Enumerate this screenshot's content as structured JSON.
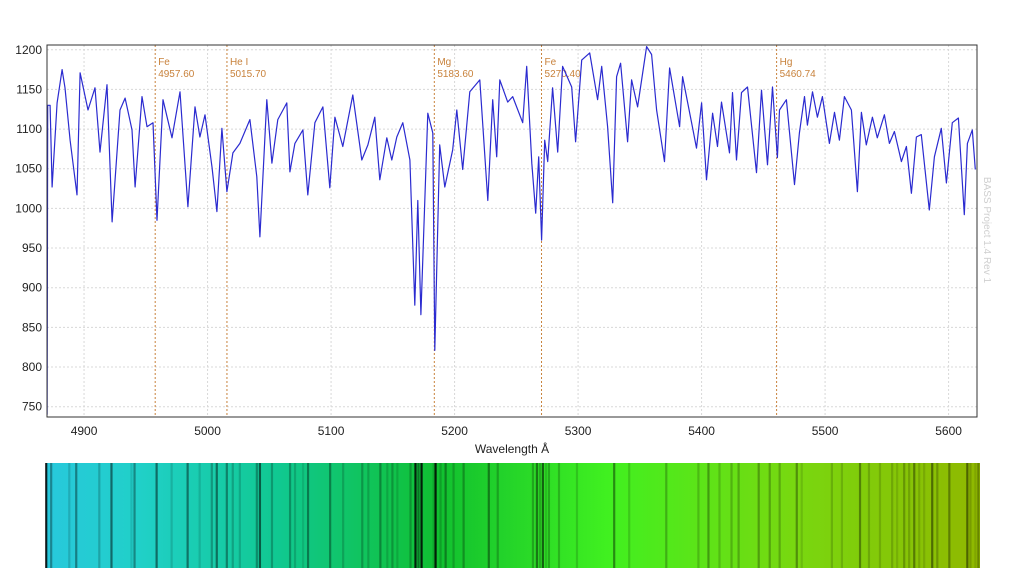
{
  "chart_data": {
    "type": "line",
    "title": "",
    "xlabel": "Wavelength Å",
    "ylabel": "",
    "xlim": [
      4870,
      5623
    ],
    "ylim": [
      737,
      1206
    ],
    "xticks": [
      4900,
      5000,
      5100,
      5200,
      5300,
      5400,
      5500,
      5600
    ],
    "yticks": [
      750,
      800,
      850,
      900,
      950,
      1000,
      1050,
      1100,
      1150,
      1200
    ],
    "grid": true,
    "line_color": "#2b2bd0",
    "marker_color": "#c8823c",
    "spectral_lines": [
      {
        "element": "Fe",
        "wavelength": "4957.60"
      },
      {
        "element": "He I",
        "wavelength": "5015.70"
      },
      {
        "element": "Mg",
        "wavelength": "5183.60"
      },
      {
        "element": "Fe",
        "wavelength": "5270.40"
      },
      {
        "element": "Hg",
        "wavelength": "5460.74"
      }
    ],
    "credit": "BASS Project 1.4 Rev 1",
    "series": [
      {
        "points": [
          [
            4870.1,
            740
          ],
          [
            4870.6,
            1130
          ],
          [
            4872.5,
            1130
          ],
          [
            4874.1,
            1027
          ],
          [
            4878.2,
            1133
          ],
          [
            4882.2,
            1175
          ],
          [
            4884.6,
            1152
          ],
          [
            4888.7,
            1086
          ],
          [
            4894.3,
            1017
          ],
          [
            4896.8,
            1171
          ],
          [
            4903.2,
            1124
          ],
          [
            4908.9,
            1152
          ],
          [
            4912.9,
            1071
          ],
          [
            4918.6,
            1156
          ],
          [
            4922.7,
            983
          ],
          [
            4929.1,
            1124
          ],
          [
            4933.2,
            1139
          ],
          [
            4938.8,
            1099
          ],
          [
            4941.3,
            1027
          ],
          [
            4946.9,
            1141
          ],
          [
            4951.0,
            1103
          ],
          [
            4955.8,
            1108
          ],
          [
            4959.1,
            985
          ],
          [
            4963.9,
            1137
          ],
          [
            4971.2,
            1089
          ],
          [
            4977.7,
            1147
          ],
          [
            4984.1,
            1002
          ],
          [
            4989.8,
            1128
          ],
          [
            4993.8,
            1090
          ],
          [
            4997.9,
            1118
          ],
          [
            5003.6,
            1052
          ],
          [
            5007.6,
            996
          ],
          [
            5011.6,
            1101
          ],
          [
            5015.7,
            1021
          ],
          [
            5020.5,
            1070
          ],
          [
            5026.2,
            1082
          ],
          [
            5034.3,
            1112
          ],
          [
            5039.9,
            1040
          ],
          [
            5042.4,
            964
          ],
          [
            5048.0,
            1137
          ],
          [
            5052.1,
            1057
          ],
          [
            5056.9,
            1112
          ],
          [
            5064.2,
            1133
          ],
          [
            5066.7,
            1046
          ],
          [
            5070.7,
            1082
          ],
          [
            5077.2,
            1099
          ],
          [
            5081.2,
            1017
          ],
          [
            5086.9,
            1108
          ],
          [
            5093.4,
            1128
          ],
          [
            5099.0,
            1026
          ],
          [
            5103.1,
            1115
          ],
          [
            5109.5,
            1078
          ],
          [
            5117.6,
            1143
          ],
          [
            5124.9,
            1061
          ],
          [
            5129.8,
            1080
          ],
          [
            5135.4,
            1115
          ],
          [
            5139.5,
            1036
          ],
          [
            5145.1,
            1089
          ],
          [
            5149.2,
            1061
          ],
          [
            5153.2,
            1090
          ],
          [
            5158.1,
            1108
          ],
          [
            5163.8,
            1061
          ],
          [
            5167.8,
            878
          ],
          [
            5170.2,
            1010
          ],
          [
            5172.7,
            866
          ],
          [
            5178.3,
            1120
          ],
          [
            5182.4,
            1095
          ],
          [
            5184.0,
            821
          ],
          [
            5188.0,
            1080
          ],
          [
            5192.1,
            1027
          ],
          [
            5198.5,
            1074
          ],
          [
            5201.8,
            1124
          ],
          [
            5206.6,
            1049
          ],
          [
            5212.3,
            1147
          ],
          [
            5220.4,
            1162
          ],
          [
            5226.9,
            1010
          ],
          [
            5230.9,
            1137
          ],
          [
            5234.1,
            1065
          ],
          [
            5236.6,
            1162
          ],
          [
            5243.0,
            1134
          ],
          [
            5247.1,
            1141
          ],
          [
            5255.2,
            1108
          ],
          [
            5258.4,
            1179
          ],
          [
            5262.5,
            1057
          ],
          [
            5265.7,
            994
          ],
          [
            5268.1,
            1065
          ],
          [
            5270.5,
            960
          ],
          [
            5273.0,
            1086
          ],
          [
            5275.4,
            1059
          ],
          [
            5279.4,
            1152
          ],
          [
            5283.5,
            1071
          ],
          [
            5287.5,
            1179
          ],
          [
            5294.8,
            1153
          ],
          [
            5298.0,
            1084
          ],
          [
            5302.9,
            1187
          ],
          [
            5309.4,
            1196
          ],
          [
            5315.8,
            1137
          ],
          [
            5319.1,
            1179
          ],
          [
            5323.9,
            1103
          ],
          [
            5328.0,
            1007
          ],
          [
            5331.2,
            1166
          ],
          [
            5334.4,
            1183
          ],
          [
            5340.1,
            1084
          ],
          [
            5343.3,
            1162
          ],
          [
            5348.2,
            1128
          ],
          [
            5355.5,
            1204
          ],
          [
            5359.5,
            1194
          ],
          [
            5363.6,
            1124
          ],
          [
            5370.0,
            1059
          ],
          [
            5374.1,
            1177
          ],
          [
            5382.2,
            1103
          ],
          [
            5384.6,
            1166
          ],
          [
            5391.9,
            1108
          ],
          [
            5395.9,
            1076
          ],
          [
            5400.0,
            1133
          ],
          [
            5404.0,
            1036
          ],
          [
            5408.9,
            1120
          ],
          [
            5412.9,
            1078
          ],
          [
            5416.1,
            1134
          ],
          [
            5422.6,
            1070
          ],
          [
            5425.0,
            1146
          ],
          [
            5428.3,
            1061
          ],
          [
            5432.3,
            1146
          ],
          [
            5437.2,
            1153
          ],
          [
            5444.5,
            1045
          ],
          [
            5448.5,
            1149
          ],
          [
            5453.4,
            1055
          ],
          [
            5457.4,
            1153
          ],
          [
            5461.4,
            1064
          ],
          [
            5463.1,
            1124
          ],
          [
            5468.7,
            1137
          ],
          [
            5475.2,
            1030
          ],
          [
            5479.2,
            1095
          ],
          [
            5483.3,
            1141
          ],
          [
            5485.7,
            1105
          ],
          [
            5489.8,
            1147
          ],
          [
            5493.8,
            1115
          ],
          [
            5497.8,
            1141
          ],
          [
            5503.5,
            1082
          ],
          [
            5507.6,
            1121
          ],
          [
            5511.6,
            1086
          ],
          [
            5515.6,
            1141
          ],
          [
            5521.3,
            1124
          ],
          [
            5526.2,
            1021
          ],
          [
            5529.4,
            1121
          ],
          [
            5533.4,
            1080
          ],
          [
            5538.3,
            1115
          ],
          [
            5542.3,
            1089
          ],
          [
            5548.0,
            1118
          ],
          [
            5552.1,
            1082
          ],
          [
            5556.1,
            1097
          ],
          [
            5561.8,
            1059
          ],
          [
            5565.8,
            1078
          ],
          [
            5569.9,
            1019
          ],
          [
            5573.9,
            1090
          ],
          [
            5577.9,
            1093
          ],
          [
            5584.4,
            998
          ],
          [
            5588.5,
            1065
          ],
          [
            5594.1,
            1101
          ],
          [
            5598.2,
            1032
          ],
          [
            5603.0,
            1108
          ],
          [
            5607.9,
            1114
          ],
          [
            5612.7,
            992
          ],
          [
            5615.2,
            1082
          ],
          [
            5619.2,
            1099
          ],
          [
            5621.6,
            1049
          ]
        ]
      }
    ]
  }
}
